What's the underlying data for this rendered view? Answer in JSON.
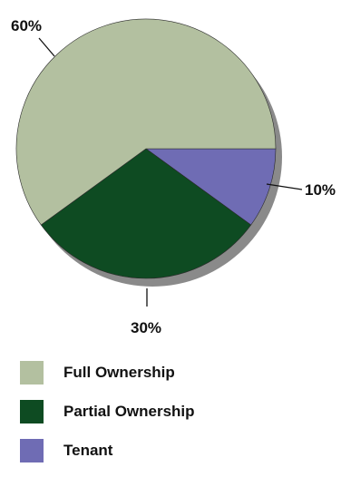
{
  "chart_data": {
    "type": "pie",
    "categories": [
      "Full Ownership",
      "Partial Ownership",
      "Tenant"
    ],
    "values": [
      60,
      30,
      10
    ],
    "labels": [
      "60%",
      "30%",
      "10%"
    ],
    "colors": [
      "#b3c0a0",
      "#0e4b22",
      "#6f6cb4"
    ],
    "shadow_color": "#8a8a8a",
    "edge_color": "#2a2a2a",
    "legend_position": "bottom-left"
  },
  "legend": {
    "items": [
      {
        "label": "Full Ownership",
        "color": "#b3c0a0"
      },
      {
        "label": "Partial Ownership",
        "color": "#0e4b22"
      },
      {
        "label": "Tenant",
        "color": "#6f6cb4"
      }
    ]
  }
}
